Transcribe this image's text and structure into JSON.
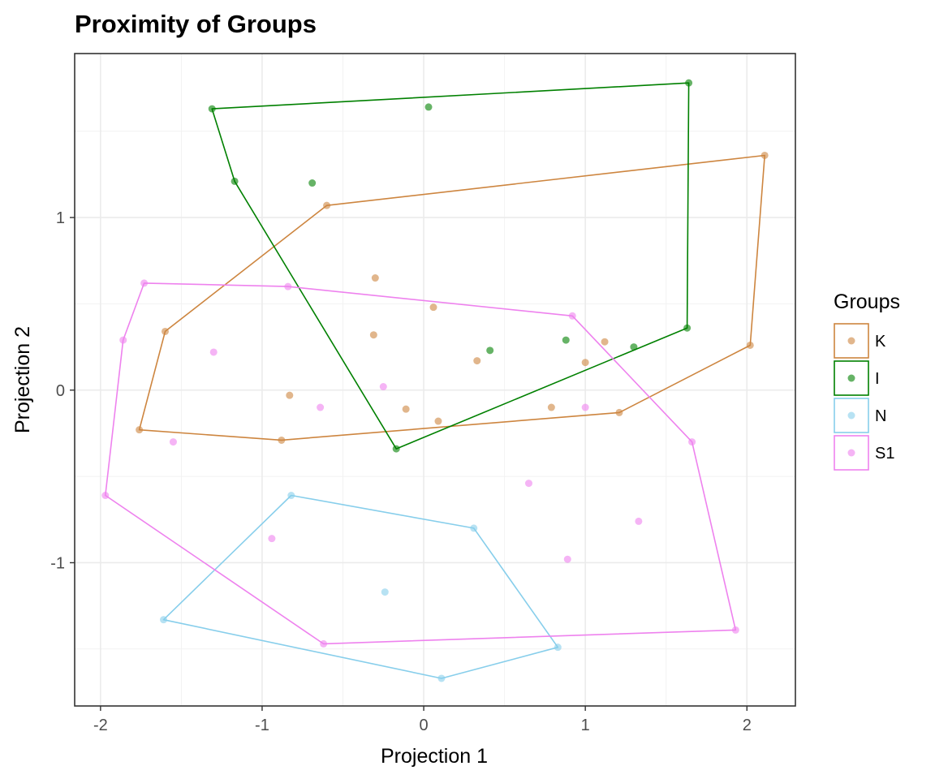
{
  "chart_data": {
    "type": "scatter",
    "title": "Proximity of Groups",
    "xlabel": "Projection 1",
    "ylabel": "Projection 2",
    "xlim": [
      -2.16,
      2.3
    ],
    "ylim": [
      -1.83,
      1.95
    ],
    "x_ticks": [
      -2,
      -1,
      0,
      1,
      2
    ],
    "x_tick_labels": [
      "-2",
      "-1",
      "0",
      "1",
      "2"
    ],
    "y_ticks": [
      -1,
      0,
      1
    ],
    "y_tick_labels": [
      "-1",
      "0",
      "1"
    ],
    "x_minor_ticks": [
      -1.5,
      -0.5,
      0.5,
      1.5
    ],
    "y_minor_ticks": [
      -1.5,
      -0.5,
      0.5,
      1.5
    ],
    "grid": true,
    "legend": {
      "title": "Groups",
      "position": "right"
    },
    "series": [
      {
        "name": "K",
        "color": "#cd853f",
        "points": [
          [
            -1.76,
            -0.23
          ],
          [
            -1.6,
            0.34
          ],
          [
            -0.6,
            1.07
          ],
          [
            2.11,
            1.36
          ],
          [
            2.02,
            0.26
          ],
          [
            1.21,
            -0.13
          ],
          [
            -0.88,
            -0.29
          ],
          [
            -0.83,
            -0.03
          ],
          [
            -0.3,
            0.65
          ],
          [
            -0.31,
            0.32
          ],
          [
            -0.11,
            -0.11
          ],
          [
            0.06,
            0.48
          ],
          [
            0.09,
            -0.18
          ],
          [
            0.33,
            0.17
          ],
          [
            0.79,
            -0.1
          ],
          [
            1.0,
            0.16
          ],
          [
            1.12,
            0.28
          ]
        ],
        "hull": [
          [
            -1.76,
            -0.23
          ],
          [
            -1.6,
            0.34
          ],
          [
            -0.6,
            1.07
          ],
          [
            2.11,
            1.36
          ],
          [
            2.02,
            0.26
          ],
          [
            1.21,
            -0.13
          ],
          [
            -0.88,
            -0.29
          ]
        ]
      },
      {
        "name": "I",
        "color": "#008000",
        "points": [
          [
            -1.31,
            1.63
          ],
          [
            0.03,
            1.64
          ],
          [
            1.64,
            1.78
          ],
          [
            -1.17,
            1.21
          ],
          [
            -0.69,
            1.2
          ],
          [
            1.63,
            0.36
          ],
          [
            -0.17,
            -0.34
          ],
          [
            0.41,
            0.23
          ],
          [
            0.88,
            0.29
          ],
          [
            1.3,
            0.25
          ]
        ],
        "hull": [
          [
            -1.31,
            1.63
          ],
          [
            1.64,
            1.78
          ],
          [
            1.63,
            0.36
          ],
          [
            -0.17,
            -0.34
          ],
          [
            -1.17,
            1.21
          ]
        ]
      },
      {
        "name": "N",
        "color": "#87ceeb",
        "points": [
          [
            -0.82,
            -0.61
          ],
          [
            0.31,
            -0.8
          ],
          [
            0.83,
            -1.49
          ],
          [
            0.11,
            -1.67
          ],
          [
            -1.61,
            -1.33
          ],
          [
            -0.24,
            -1.17
          ]
        ],
        "hull": [
          [
            -0.82,
            -0.61
          ],
          [
            0.31,
            -0.8
          ],
          [
            0.83,
            -1.49
          ],
          [
            0.11,
            -1.67
          ],
          [
            -1.61,
            -1.33
          ]
        ]
      },
      {
        "name": "S1",
        "color": "#ee82ee",
        "points": [
          [
            -1.73,
            0.62
          ],
          [
            -0.84,
            0.6
          ],
          [
            0.92,
            0.43
          ],
          [
            -1.86,
            0.29
          ],
          [
            -1.97,
            -0.61
          ],
          [
            -0.62,
            -1.47
          ],
          [
            1.93,
            -1.39
          ],
          [
            1.66,
            -0.3
          ],
          [
            -1.3,
            0.22
          ],
          [
            -1.55,
            -0.3
          ],
          [
            -0.64,
            -0.1
          ],
          [
            -0.25,
            0.02
          ],
          [
            1.0,
            -0.1
          ],
          [
            0.65,
            -0.54
          ],
          [
            -0.94,
            -0.86
          ],
          [
            0.89,
            -0.98
          ],
          [
            1.33,
            -0.76
          ]
        ],
        "hull": [
          [
            -1.73,
            0.62
          ],
          [
            -0.84,
            0.6
          ],
          [
            0.92,
            0.43
          ],
          [
            1.66,
            -0.3
          ],
          [
            1.93,
            -1.39
          ],
          [
            -0.62,
            -1.47
          ],
          [
            -1.97,
            -0.61
          ],
          [
            -1.86,
            0.29
          ]
        ]
      }
    ]
  }
}
